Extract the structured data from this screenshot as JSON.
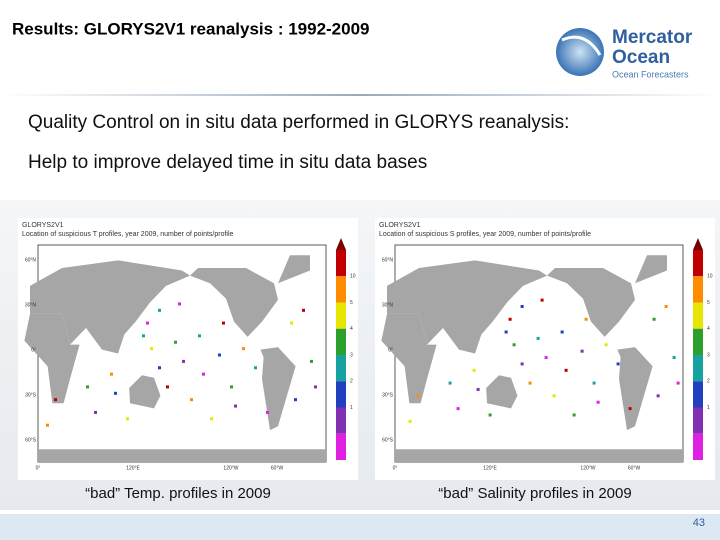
{
  "header": {
    "title": "Results: GLORYS2V1 reanalysis : 1992-2009",
    "logo_line1": "Mercator",
    "logo_line2": "Ocean",
    "logo_tagline": "Ocean Forecasters"
  },
  "body": {
    "line1": "Quality Control on in situ data performed in GLORYS reanalysis:",
    "line2": "Help to improve delayed time in situ data bases"
  },
  "figures": [
    {
      "name": "GLORYS2V1",
      "subtitle": "Location of suspicious T profiles, year 2009, number of points/profile",
      "lat_labels": [
        "60°N",
        "30°N",
        "0°",
        "30°S",
        "60°S"
      ],
      "lon_labels": [
        "0°",
        "120°E",
        "120°W",
        "60°W"
      ],
      "colorbar_labels": [
        "10",
        "5",
        "4",
        "3",
        "2",
        "1"
      ],
      "caption": "“bad” Temp. profiles in 2009"
    },
    {
      "name": "GLORYS2V1",
      "subtitle": "Location of suspicious S profiles, year 2009, number of points/profile",
      "lat_labels": [
        "60°N",
        "30°N",
        "0°",
        "30°S",
        "60°S"
      ],
      "lon_labels": [
        "0°",
        "120°E",
        "120°W",
        "60°W"
      ],
      "colorbar_labels": [
        "10",
        "5",
        "4",
        "3",
        "2",
        "1"
      ],
      "caption": "“bad” Salinity profiles in 2009"
    }
  ],
  "footer": {
    "page_number": "43"
  }
}
